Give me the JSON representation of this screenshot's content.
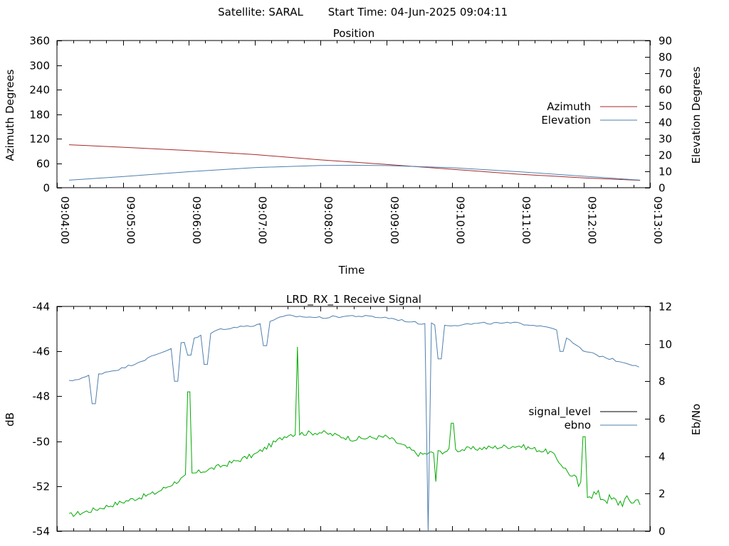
{
  "header": {
    "satellite_label": "Satellite: SARAL",
    "start_time_label": "Start Time: 04-Jun-2025 09:04:11"
  },
  "chart_data": [
    {
      "type": "line",
      "title": "Position",
      "xlabel": "Time",
      "ylabel": "Azimuth Degrees",
      "y2label": "Elevation Degrees",
      "x_ticks": [
        "09:04:00",
        "09:05:00",
        "09:06:00",
        "09:07:00",
        "09:08:00",
        "09:09:00",
        "09:10:00",
        "09:11:00",
        "09:12:00",
        "09:13:00"
      ],
      "xlim": [
        "09:04:00",
        "09:13:00"
      ],
      "ylim": [
        0,
        360
      ],
      "y_ticks": [
        "0",
        "60",
        "120",
        "180",
        "240",
        "300",
        "360"
      ],
      "y2lim": [
        0,
        90
      ],
      "y2_ticks": [
        "0",
        "10",
        "20",
        "30",
        "40",
        "50",
        "60",
        "70",
        "80",
        "90"
      ],
      "legend_position": "right",
      "grid": false,
      "series": [
        {
          "name": "Azimuth",
          "axis": "left",
          "color": "#a52a2a",
          "x": [
            "09:04:11",
            "09:05:00",
            "09:06:00",
            "09:07:00",
            "09:08:00",
            "09:09:00",
            "09:10:00",
            "09:11:00",
            "09:12:00",
            "09:12:51"
          ],
          "values": [
            105,
            99,
            91,
            81,
            68,
            57,
            45,
            33,
            24,
            18
          ]
        },
        {
          "name": "Elevation",
          "axis": "right",
          "color": "#4f7fae",
          "x": [
            "09:04:11",
            "09:05:00",
            "09:06:00",
            "09:07:00",
            "09:08:00",
            "09:08:30",
            "09:09:00",
            "09:10:00",
            "09:11:00",
            "09:12:00",
            "09:12:51"
          ],
          "values": [
            4.6,
            6.8,
            9.8,
            12.3,
            13.6,
            13.7,
            13.5,
            12.2,
            9.8,
            7.0,
            4.6
          ]
        }
      ]
    },
    {
      "type": "line",
      "title": "LRD_RX_1 Receive Signal",
      "ylabel": "dB",
      "y2label": "Eb/No",
      "xlim": [
        "09:04:00",
        "09:13:00"
      ],
      "ylim": [
        -54,
        -44
      ],
      "y_ticks": [
        "-54",
        "-52",
        "-50",
        "-48",
        "-46",
        "-44"
      ],
      "y2lim": [
        0,
        12
      ],
      "y2_ticks": [
        "0",
        "2",
        "4",
        "6",
        "8",
        "10",
        "12"
      ],
      "legend_position": "right",
      "grid": false,
      "series": [
        {
          "name": "signal_level",
          "axis": "left",
          "color": "#00aa00",
          "legend_color": "#000000",
          "x": [
            "09:04:11",
            "09:04:30",
            "09:05:00",
            "09:05:30",
            "09:06:00",
            "09:06:30",
            "09:07:00",
            "09:07:30",
            "09:08:00",
            "09:08:30",
            "09:09:00",
            "09:09:30",
            "09:10:00",
            "09:10:30",
            "09:11:00",
            "09:11:30",
            "09:12:00",
            "09:12:30",
            "09:12:51"
          ],
          "values": [
            -53.3,
            -53.1,
            -52.7,
            -52.3,
            -51.5,
            -51.1,
            -50.6,
            -49.7,
            -49.6,
            -49.9,
            -49.8,
            -50.6,
            -50.4,
            -50.3,
            -50.2,
            -50.5,
            -52.2,
            -52.7,
            -52.6
          ],
          "spikes": [
            {
              "x": "09:06:00",
              "value": -47.8
            },
            {
              "x": "09:07:39",
              "value": -45.8
            },
            {
              "x": "09:09:45",
              "value": -51.8
            },
            {
              "x": "09:10:00",
              "value": -49.2
            },
            {
              "x": "09:12:00",
              "value": -49.8
            }
          ]
        },
        {
          "name": "ebno",
          "axis": "right",
          "color": "#4f7fae",
          "x": [
            "09:04:11",
            "09:04:30",
            "09:05:00",
            "09:05:30",
            "09:06:00",
            "09:06:30",
            "09:07:00",
            "09:07:30",
            "09:08:00",
            "09:08:30",
            "09:09:00",
            "09:09:30",
            "09:10:00",
            "09:10:30",
            "09:11:00",
            "09:11:30",
            "09:12:00",
            "09:12:30",
            "09:12:51"
          ],
          "values": [
            8.0,
            8.3,
            8.7,
            9.4,
            10.2,
            10.8,
            11.0,
            11.5,
            11.4,
            11.5,
            11.4,
            11.1,
            11.0,
            11.1,
            11.1,
            10.9,
            9.6,
            9.1,
            8.8
          ],
          "dips": [
            {
              "x": "09:04:34",
              "value": 6.8
            },
            {
              "x": "09:05:48",
              "value": 8.0
            },
            {
              "x": "09:06:00",
              "value": 9.4
            },
            {
              "x": "09:06:15",
              "value": 8.9
            },
            {
              "x": "09:07:10",
              "value": 9.9
            },
            {
              "x": "09:09:38",
              "value": 0.0
            },
            {
              "x": "09:09:48",
              "value": 9.2
            },
            {
              "x": "09:11:40",
              "value": 9.6
            }
          ]
        }
      ]
    }
  ]
}
